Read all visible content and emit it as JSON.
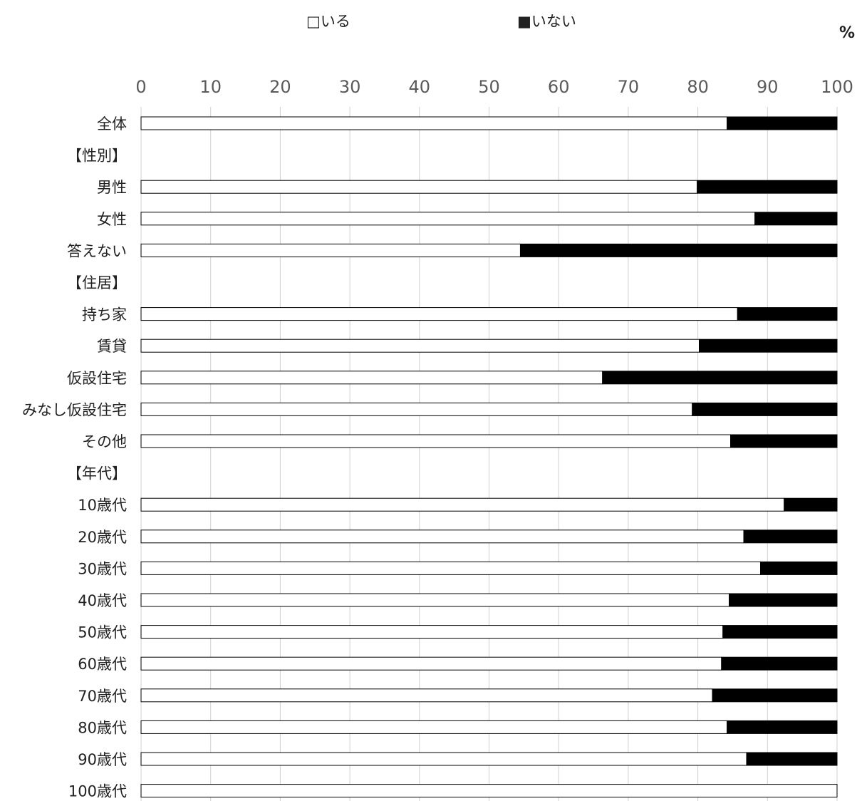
{
  "legend": {
    "yes_label": "□いる",
    "no_label": "■いない"
  },
  "unit_label": "%",
  "colors": {
    "yes_fill": "#ffffff",
    "no_fill": "#000000",
    "bar_stroke": "#000000",
    "grid": "#d0d0d0"
  },
  "chart_data": {
    "type": "bar",
    "orientation": "horizontal",
    "stacked": true,
    "xlim": [
      0,
      100
    ],
    "xticks": [
      0,
      10,
      20,
      30,
      40,
      50,
      60,
      70,
      80,
      90,
      100
    ],
    "grid": true,
    "legend_position": "top",
    "categories": [
      "全体",
      "【性別】",
      "男性",
      "女性",
      "答えない",
      "【住居】",
      "持ち家",
      "賃貸",
      "仮設住宅",
      "みなし仮設住宅",
      "その他",
      "【年代】",
      "10歳代",
      "20歳代",
      "30歳代",
      "40歳代",
      "50歳代",
      "60歳代",
      "70歳代",
      "80歳代",
      "90歳代",
      "100歳代"
    ],
    "series": [
      {
        "name": "いる",
        "values": [
          84.2,
          null,
          79.9,
          88.2,
          54.5,
          null,
          85.7,
          80.2,
          66.3,
          79.2,
          84.7,
          null,
          92.4,
          86.6,
          89.0,
          84.5,
          83.6,
          83.4,
          82.1,
          84.2,
          87.0,
          100.0
        ]
      },
      {
        "name": "いない",
        "values": [
          15.8,
          null,
          20.1,
          11.8,
          45.5,
          null,
          14.3,
          19.8,
          33.7,
          20.8,
          15.3,
          null,
          7.6,
          13.4,
          11.0,
          15.5,
          16.4,
          16.6,
          17.9,
          15.8,
          13.0,
          0.0
        ]
      }
    ]
  }
}
